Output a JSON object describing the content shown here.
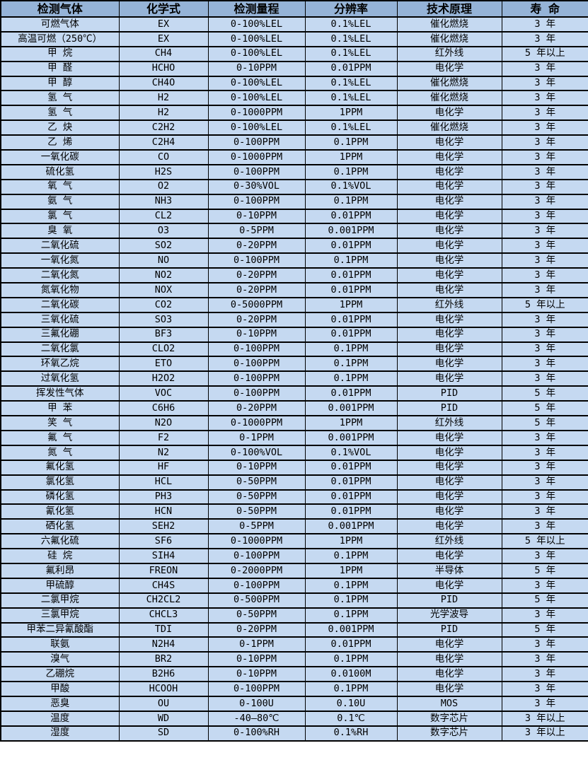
{
  "table": {
    "columns": [
      "检测气体",
      "化学式",
      "检测量程",
      "分辨率",
      "技术原理",
      "寿 命"
    ],
    "rows": [
      [
        "可燃气体",
        "EX",
        "0-100%LEL",
        "0.1%LEL",
        "催化燃烧",
        "3 年"
      ],
      [
        "高温可燃（250℃）",
        "EX",
        "0-100%LEL",
        "0.1%LEL",
        "催化燃烧",
        "3 年"
      ],
      [
        "甲 烷",
        "CH4",
        "0-100%LEL",
        "0.1%LEL",
        "红外线",
        "5 年以上"
      ],
      [
        "甲 醛",
        "HCHO",
        "0-10PPM",
        "0.01PPM",
        "电化学",
        "3 年"
      ],
      [
        "甲 醇",
        "CH4O",
        "0-100%LEL",
        "0.1%LEL",
        "催化燃烧",
        "3 年"
      ],
      [
        "氢 气",
        "H2",
        "0-100%LEL",
        "0.1%LEL",
        "催化燃烧",
        "3 年"
      ],
      [
        "氢 气",
        "H2",
        "0-1000PPM",
        "1PPM",
        "电化学",
        "3 年"
      ],
      [
        "乙 炔",
        "C2H2",
        "0-100%LEL",
        "0.1%LEL",
        "催化燃烧",
        "3 年"
      ],
      [
        "乙 烯",
        "C2H4",
        "0-100PPM",
        "0.1PPM",
        "电化学",
        "3 年"
      ],
      [
        "一氧化碳",
        "CO",
        "0-1000PPM",
        "1PPM",
        "电化学",
        "3 年"
      ],
      [
        "硫化氢",
        "H2S",
        "0-100PPM",
        "0.1PPM",
        "电化学",
        "3 年"
      ],
      [
        "氧 气",
        "O2",
        "0-30%VOL",
        "0.1%VOL",
        "电化学",
        "3 年"
      ],
      [
        "氨 气",
        "NH3",
        "0-100PPM",
        "0.1PPM",
        "电化学",
        "3 年"
      ],
      [
        "氯 气",
        "CL2",
        "0-10PPM",
        "0.01PPM",
        "电化学",
        "3 年"
      ],
      [
        "臭 氧",
        "O3",
        "0-5PPM",
        "0.001PPM",
        "电化学",
        "3 年"
      ],
      [
        "二氧化硫",
        "SO2",
        "0-20PPM",
        "0.01PPM",
        "电化学",
        "3 年"
      ],
      [
        "一氧化氮",
        "NO",
        "0-100PPM",
        "0.1PPM",
        "电化学",
        "3 年"
      ],
      [
        "二氧化氮",
        "NO2",
        "0-20PPM",
        "0.01PPM",
        "电化学",
        "3 年"
      ],
      [
        "氮氧化物",
        "NOX",
        "0-20PPM",
        "0.01PPM",
        "电化学",
        "3 年"
      ],
      [
        "二氧化碳",
        "CO2",
        "0-5000PPM",
        "1PPM",
        "红外线",
        "5 年以上"
      ],
      [
        "三氧化硫",
        "SO3",
        "0-20PPM",
        "0.01PPM",
        "电化学",
        "3 年"
      ],
      [
        "三氟化硼",
        "BF3",
        "0-10PPM",
        "0.01PPM",
        "电化学",
        "3 年"
      ],
      [
        "二氧化氯",
        "CLO2",
        "0-100PPM",
        "0.1PPM",
        "电化学",
        "3 年"
      ],
      [
        "环氧乙烷",
        "ETO",
        "0-100PPM",
        "0.1PPM",
        "电化学",
        "3 年"
      ],
      [
        "过氧化氢",
        "H2O2",
        "0-100PPM",
        "0.1PPM",
        "电化学",
        "3 年"
      ],
      [
        "挥发性气体",
        "VOC",
        "0-100PPM",
        "0.01PPM",
        "PID",
        "5 年"
      ],
      [
        "甲 苯",
        "C6H6",
        "0-20PPM",
        "0.001PPM",
        "PID",
        "5 年"
      ],
      [
        "笑 气",
        "N2O",
        "0-1000PPM",
        "1PPM",
        "红外线",
        "5 年"
      ],
      [
        "氟 气",
        "F2",
        "0-1PPM",
        "0.001PPM",
        "电化学",
        "3 年"
      ],
      [
        "氮 气",
        "N2",
        "0-100%VOL",
        "0.1%VOL",
        "电化学",
        "3 年"
      ],
      [
        "氟化氢",
        "HF",
        "0-10PPM",
        "0.01PPM",
        "电化学",
        "3 年"
      ],
      [
        "氯化氢",
        "HCL",
        "0-50PPM",
        "0.01PPM",
        "电化学",
        "3 年"
      ],
      [
        "磷化氢",
        "PH3",
        "0-50PPM",
        "0.01PPM",
        "电化学",
        "3 年"
      ],
      [
        "氰化氢",
        "HCN",
        "0-50PPM",
        "0.01PPM",
        "电化学",
        "3 年"
      ],
      [
        "硒化氢",
        "SEH2",
        "0-5PPM",
        "0.001PPM",
        "电化学",
        "3 年"
      ],
      [
        "六氟化硫",
        "SF6",
        "0-1000PPM",
        "1PPM",
        "红外线",
        "5 年以上"
      ],
      [
        "硅 烷",
        "SIH4",
        "0-100PPM",
        "0.1PPM",
        "电化学",
        "3 年"
      ],
      [
        "氟利昂",
        "FREON",
        "0-2000PPM",
        "1PPM",
        "半导体",
        "5 年"
      ],
      [
        "甲硫醇",
        "CH4S",
        "0-100PPM",
        "0.1PPM",
        "电化学",
        "3 年"
      ],
      [
        "二氯甲烷",
        "CH2CL2",
        "0-500PPM",
        "0.1PPM",
        "PID",
        "5 年"
      ],
      [
        "三氯甲烷",
        "CHCL3",
        "0-50PPM",
        "0.1PPM",
        "光学波导",
        "3 年"
      ],
      [
        "甲苯二异氰酸酯",
        "TDI",
        "0-20PPM",
        "0.001PPM",
        "PID",
        "5 年"
      ],
      [
        "联氨",
        "N2H4",
        "0-1PPM",
        "0.01PPM",
        "电化学",
        "3 年"
      ],
      [
        "溴气",
        "BR2",
        "0-10PPM",
        "0.1PPM",
        "电化学",
        "3 年"
      ],
      [
        "乙硼烷",
        "B2H6",
        "0-10PPM",
        "0.0100M",
        "电化学",
        "3 年"
      ],
      [
        "甲酸",
        "HCOOH",
        "0-100PPM",
        "0.1PPM",
        "电化学",
        "3 年"
      ],
      [
        "恶臭",
        "OU",
        "0-100U",
        "0.10U",
        "MOS",
        "3 年"
      ],
      [
        "温度",
        "WD",
        "-40—80℃",
        "0.1℃",
        "数字芯片",
        "3 年以上"
      ],
      [
        "湿度",
        "SD",
        "0-100%RH",
        "0.1%RH",
        "数字芯片",
        "3 年以上"
      ]
    ]
  },
  "colors": {
    "header_bg": "#95B3D7",
    "row_bg": "#C5D9F1",
    "border": "#000000",
    "text": "#000000"
  }
}
